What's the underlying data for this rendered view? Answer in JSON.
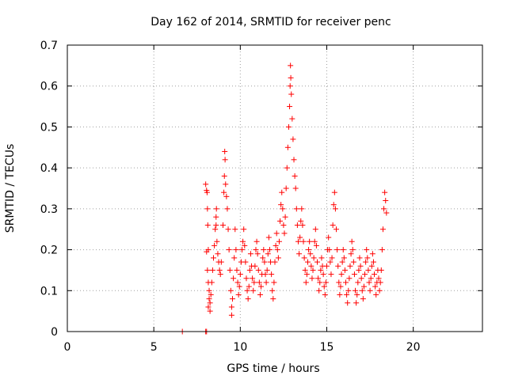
{
  "chart_data": {
    "type": "scatter",
    "title": "Day 162 of 2014, SRMTID for receiver penc",
    "xlabel": "GPS time / hours",
    "ylabel": "SRMTID / TECUs",
    "xlim": [
      0,
      24
    ],
    "ylim": [
      0,
      0.7
    ],
    "xticks": [
      0,
      5,
      10,
      15,
      20
    ],
    "xtick_labels": [
      "0",
      "5",
      "10",
      "15",
      "20"
    ],
    "yticks": [
      0,
      0.1,
      0.2,
      0.3,
      0.4,
      0.5,
      0.6,
      0.7
    ],
    "ytick_labels": [
      "0",
      "0.1",
      "0.2",
      "0.3",
      "0.4",
      "0.5",
      "0.6",
      "0.7"
    ],
    "grid": true,
    "marker": "+",
    "marker_color": "#ff0000",
    "series": [
      {
        "values": [
          [
            6.65,
            0.0
          ],
          [
            8.0,
            0.0
          ],
          [
            8.05,
            0.0
          ],
          [
            8.0,
            0.36
          ],
          [
            8.05,
            0.345
          ],
          [
            8.08,
            0.34
          ],
          [
            8.1,
            0.3
          ],
          [
            8.12,
            0.26
          ],
          [
            8.15,
            0.2
          ],
          [
            8.05,
            0.195
          ],
          [
            8.1,
            0.15
          ],
          [
            8.15,
            0.12
          ],
          [
            8.2,
            0.1
          ],
          [
            8.2,
            0.08
          ],
          [
            8.25,
            0.07
          ],
          [
            8.15,
            0.06
          ],
          [
            8.25,
            0.05
          ],
          [
            8.3,
            0.09
          ],
          [
            8.35,
            0.12
          ],
          [
            8.4,
            0.15
          ],
          [
            8.45,
            0.18
          ],
          [
            8.5,
            0.21
          ],
          [
            8.55,
            0.25
          ],
          [
            8.6,
            0.28
          ],
          [
            8.62,
            0.3
          ],
          [
            8.6,
            0.26
          ],
          [
            8.65,
            0.22
          ],
          [
            8.7,
            0.19
          ],
          [
            8.75,
            0.17
          ],
          [
            8.8,
            0.15
          ],
          [
            8.85,
            0.14
          ],
          [
            8.9,
            0.17
          ],
          [
            9.0,
            0.26
          ],
          [
            9.05,
            0.34
          ],
          [
            9.08,
            0.38
          ],
          [
            9.1,
            0.44
          ],
          [
            9.12,
            0.42
          ],
          [
            9.15,
            0.36
          ],
          [
            9.2,
            0.33
          ],
          [
            9.25,
            0.3
          ],
          [
            9.3,
            0.25
          ],
          [
            9.35,
            0.2
          ],
          [
            9.4,
            0.15
          ],
          [
            9.45,
            0.1
          ],
          [
            9.5,
            0.06
          ],
          [
            9.5,
            0.04
          ],
          [
            9.55,
            0.08
          ],
          [
            9.6,
            0.13
          ],
          [
            9.65,
            0.18
          ],
          [
            9.7,
            0.25
          ],
          [
            9.75,
            0.2
          ],
          [
            9.8,
            0.15
          ],
          [
            9.85,
            0.12
          ],
          [
            9.9,
            0.09
          ],
          [
            9.95,
            0.11
          ],
          [
            10.0,
            0.14
          ],
          [
            10.05,
            0.17
          ],
          [
            10.1,
            0.2
          ],
          [
            10.15,
            0.22
          ],
          [
            10.2,
            0.25
          ],
          [
            10.25,
            0.21
          ],
          [
            10.3,
            0.17
          ],
          [
            10.35,
            0.13
          ],
          [
            10.4,
            0.1
          ],
          [
            10.45,
            0.08
          ],
          [
            10.5,
            0.11
          ],
          [
            10.55,
            0.15
          ],
          [
            10.6,
            0.19
          ],
          [
            10.65,
            0.16
          ],
          [
            10.7,
            0.13
          ],
          [
            10.75,
            0.1
          ],
          [
            10.8,
            0.12
          ],
          [
            10.85,
            0.16
          ],
          [
            10.9,
            0.2
          ],
          [
            10.95,
            0.22
          ],
          [
            11.0,
            0.19
          ],
          [
            11.05,
            0.15
          ],
          [
            11.1,
            0.12
          ],
          [
            11.15,
            0.09
          ],
          [
            11.2,
            0.11
          ],
          [
            11.25,
            0.14
          ],
          [
            11.3,
            0.18
          ],
          [
            11.35,
            0.2
          ],
          [
            11.4,
            0.17
          ],
          [
            11.45,
            0.14
          ],
          [
            11.5,
            0.12
          ],
          [
            11.55,
            0.15
          ],
          [
            11.6,
            0.19
          ],
          [
            11.65,
            0.23
          ],
          [
            11.7,
            0.2
          ],
          [
            11.75,
            0.17
          ],
          [
            11.8,
            0.14
          ],
          [
            11.85,
            0.1
          ],
          [
            11.9,
            0.08
          ],
          [
            11.95,
            0.12
          ],
          [
            12.0,
            0.17
          ],
          [
            12.05,
            0.21
          ],
          [
            12.1,
            0.24
          ],
          [
            12.15,
            0.2
          ],
          [
            12.2,
            0.18
          ],
          [
            12.25,
            0.22
          ],
          [
            12.3,
            0.27
          ],
          [
            12.35,
            0.31
          ],
          [
            12.4,
            0.34
          ],
          [
            12.45,
            0.3
          ],
          [
            12.5,
            0.26
          ],
          [
            12.55,
            0.24
          ],
          [
            12.6,
            0.28
          ],
          [
            12.65,
            0.35
          ],
          [
            12.7,
            0.4
          ],
          [
            12.75,
            0.45
          ],
          [
            12.8,
            0.5
          ],
          [
            12.85,
            0.55
          ],
          [
            12.88,
            0.6
          ],
          [
            12.9,
            0.65
          ],
          [
            12.92,
            0.62
          ],
          [
            12.95,
            0.58
          ],
          [
            13.0,
            0.52
          ],
          [
            13.05,
            0.47
          ],
          [
            13.1,
            0.42
          ],
          [
            13.15,
            0.38
          ],
          [
            13.2,
            0.35
          ],
          [
            13.25,
            0.3
          ],
          [
            13.3,
            0.26
          ],
          [
            13.35,
            0.22
          ],
          [
            13.4,
            0.19
          ],
          [
            13.45,
            0.23
          ],
          [
            13.5,
            0.27
          ],
          [
            13.55,
            0.3
          ],
          [
            13.6,
            0.26
          ],
          [
            13.65,
            0.22
          ],
          [
            13.7,
            0.18
          ],
          [
            13.75,
            0.15
          ],
          [
            13.8,
            0.12
          ],
          [
            13.85,
            0.14
          ],
          [
            13.9,
            0.17
          ],
          [
            13.95,
            0.2
          ],
          [
            14.0,
            0.22
          ],
          [
            14.05,
            0.19
          ],
          [
            14.1,
            0.16
          ],
          [
            14.15,
            0.13
          ],
          [
            14.2,
            0.15
          ],
          [
            14.25,
            0.18
          ],
          [
            14.3,
            0.22
          ],
          [
            14.35,
            0.25
          ],
          [
            14.4,
            0.21
          ],
          [
            14.45,
            0.17
          ],
          [
            14.5,
            0.13
          ],
          [
            14.55,
            0.1
          ],
          [
            14.6,
            0.12
          ],
          [
            14.65,
            0.15
          ],
          [
            14.7,
            0.18
          ],
          [
            14.75,
            0.16
          ],
          [
            14.8,
            0.14
          ],
          [
            14.85,
            0.11
          ],
          [
            14.9,
            0.09
          ],
          [
            14.95,
            0.12
          ],
          [
            15.0,
            0.16
          ],
          [
            15.05,
            0.2
          ],
          [
            15.1,
            0.23
          ],
          [
            15.15,
            0.2
          ],
          [
            15.2,
            0.17
          ],
          [
            15.25,
            0.14
          ],
          [
            15.3,
            0.18
          ],
          [
            15.35,
            0.26
          ],
          [
            15.4,
            0.31
          ],
          [
            15.45,
            0.34
          ],
          [
            15.5,
            0.3
          ],
          [
            15.55,
            0.25
          ],
          [
            15.6,
            0.2
          ],
          [
            15.65,
            0.16
          ],
          [
            15.7,
            0.12
          ],
          [
            15.75,
            0.09
          ],
          [
            15.8,
            0.11
          ],
          [
            15.85,
            0.14
          ],
          [
            15.9,
            0.17
          ],
          [
            15.95,
            0.2
          ],
          [
            16.0,
            0.18
          ],
          [
            16.05,
            0.15
          ],
          [
            16.1,
            0.12
          ],
          [
            16.15,
            0.09
          ],
          [
            16.2,
            0.07
          ],
          [
            16.25,
            0.1
          ],
          [
            16.3,
            0.13
          ],
          [
            16.35,
            0.16
          ],
          [
            16.4,
            0.19
          ],
          [
            16.45,
            0.22
          ],
          [
            16.5,
            0.2
          ],
          [
            16.55,
            0.17
          ],
          [
            16.6,
            0.14
          ],
          [
            16.65,
            0.1
          ],
          [
            16.7,
            0.07
          ],
          [
            16.75,
            0.09
          ],
          [
            16.8,
            0.12
          ],
          [
            16.85,
            0.15
          ],
          [
            16.9,
            0.18
          ],
          [
            16.95,
            0.16
          ],
          [
            17.0,
            0.13
          ],
          [
            17.05,
            0.1
          ],
          [
            17.1,
            0.08
          ],
          [
            17.15,
            0.11
          ],
          [
            17.2,
            0.14
          ],
          [
            17.25,
            0.17
          ],
          [
            17.3,
            0.2
          ],
          [
            17.35,
            0.18
          ],
          [
            17.4,
            0.15
          ],
          [
            17.45,
            0.12
          ],
          [
            17.5,
            0.1
          ],
          [
            17.55,
            0.13
          ],
          [
            17.6,
            0.16
          ],
          [
            17.65,
            0.19
          ],
          [
            17.7,
            0.17
          ],
          [
            17.75,
            0.14
          ],
          [
            17.8,
            0.11
          ],
          [
            17.85,
            0.09
          ],
          [
            17.9,
            0.12
          ],
          [
            17.95,
            0.15
          ],
          [
            18.0,
            0.13
          ],
          [
            18.05,
            0.1
          ],
          [
            18.1,
            0.12
          ],
          [
            18.15,
            0.15
          ],
          [
            18.2,
            0.2
          ],
          [
            18.25,
            0.25
          ],
          [
            18.3,
            0.3
          ],
          [
            18.35,
            0.34
          ],
          [
            18.4,
            0.32
          ],
          [
            18.45,
            0.29
          ]
        ]
      }
    ]
  }
}
